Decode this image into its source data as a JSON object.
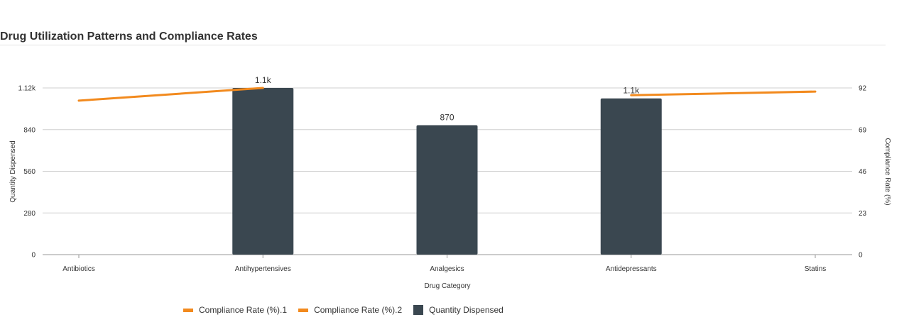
{
  "chart_data": {
    "type": "bar",
    "title": "Drug Utilization Patterns and Compliance Rates",
    "xlabel": "Drug Category",
    "ylabel": "Quantity Dispensed",
    "y2label": "Compliance Rate (%)",
    "categories": [
      "Antibiotics",
      "Antihypertensives",
      "Analgesics",
      "Antidepressants",
      "Statins"
    ],
    "ylim": [
      0,
      1120
    ],
    "y2lim": [
      0,
      92
    ],
    "yticks": [
      "0",
      "280",
      "560",
      "840",
      "1.12k"
    ],
    "y2ticks": [
      "0",
      "23",
      "46",
      "69",
      "92"
    ],
    "grid": true,
    "legend_position": "bottom",
    "series": [
      {
        "name": "Compliance Rate (%).1",
        "type": "line",
        "axis": "right",
        "color": "#f28a1e",
        "x": [
          "Antibiotics",
          "Antihypertensives"
        ],
        "values": [
          85,
          92
        ]
      },
      {
        "name": "Compliance Rate (%).2",
        "type": "line",
        "axis": "right",
        "color": "#f28a1e",
        "x": [
          "Antidepressants",
          "Statins"
        ],
        "values": [
          88,
          90
        ]
      },
      {
        "name": "Quantity Dispensed",
        "type": "bar",
        "axis": "left",
        "color": "#3a4750",
        "x": [
          "Antihypertensives",
          "Analgesics",
          "Antidepressants"
        ],
        "values": [
          1120,
          870,
          1050
        ],
        "labels": [
          "1.1k",
          "870",
          "1.1k"
        ]
      }
    ]
  }
}
